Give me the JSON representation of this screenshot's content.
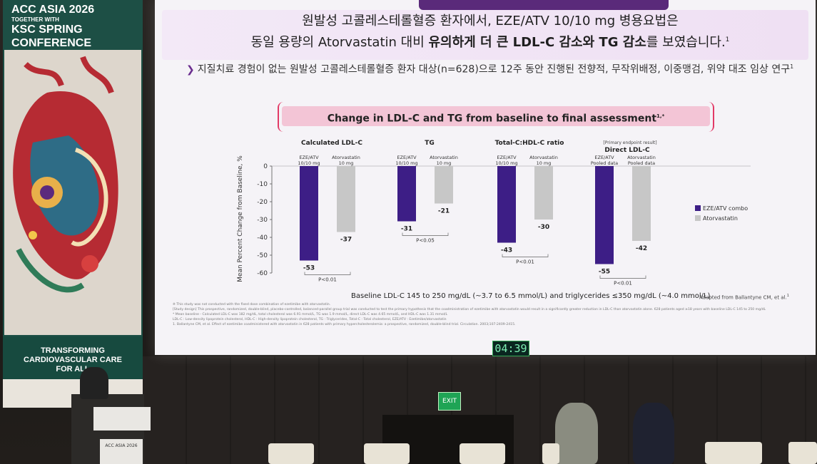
{
  "banner": {
    "line1": "ACC ASIA 2026",
    "line2": "TOGETHER WITH",
    "line3": "KSC SPRING",
    "line4": "CONFERENCE",
    "tagline1": "TRANSFORMING",
    "tagline2": "CARDIOVASCULAR CARE",
    "tagline3": "FOR ALL"
  },
  "slide": {
    "headline_line1": "원발성 고콜레스테롤혈증 환자에서, EZE/ATV 10/10 mg 병용요법은",
    "headline_line2_a": "동일 용량의 Atorvastatin 대비 ",
    "headline_line2_b": "유의하게 더 큰 LDL-C 감소와 TG 감소",
    "headline_line2_c": "를 보였습니다.",
    "headline_sup": "1",
    "bullet": "지질치료 경험이 없는 원발성 고콜레스테롤혈증 환자 대상(n=628)으로 12주 동안 진행된 전향적, 무작위배정, 이중맹검, 위약 대조 임상 연구",
    "bullet_sup": "1",
    "chart_banner": "Change in LDL-C and TG from baseline to final assessment",
    "chart_banner_sup": "1,*",
    "baseline_note": "Baseline LDL-C 145 to 250 mg/dL (~3.7 to 6.5 mmol/L) and triglycerides ≤350 mg/dL (~4.0 mmol/L).",
    "adapted": "Adapted from Ballantyne CM, et al.",
    "adapted_sup": "1",
    "footnote1": "※ This study was not conducted with the fixed dose combination of ezetimibe with atorvastatin.",
    "footnote2": "[Study design] This prospective, randomized, double-blind, placebo-controlled, balanced-parallel group trial was conducted to test the primary hypothesis that the coadministration of ezetimibe with atorvastatin would result in a significantly greater reduction in LDL-C than atorvastatin alone. 628 patients aged ≥18 years with baseline LDL-C 145 to 250 mg/dL",
    "footnote3": "* Mean baseline - Calculated LDL-C was 182 mg/dL, total cholesterol was 6.91 mmol/L, TG was 1.9 mmol/L, direct LDL-C was 4.65 mmol/L, and HDL-C was 1.31 mmol/L",
    "footnote4": "LDL-C : Low-density lipoprotein cholesterol, HDL-C : High-density lipoprotein cholesterol, TG : Triglycerides, Total-C : Total cholesterol, EZE/ATV : Ezetimibe/atorvastatin",
    "footnote5": "1. Ballantyne CM, et al. Effect of ezetimibe coadministered with atorvastatin in 628 patients with primary hypercholesterolemia: a prospective, randomized, double-blind trial. Circulation. 2003;107:2409-2415."
  },
  "timer": "04:39",
  "exit_label": "EXIT",
  "podium_label": "ACC ASIA 2026",
  "chart_data": {
    "type": "bar",
    "ylabel": "Mean Percent Change from Baseline, %",
    "ylim": [
      -60,
      0
    ],
    "yticks": [
      0,
      -10,
      -20,
      -30,
      -40,
      -50,
      -60
    ],
    "groups": [
      {
        "title": "Calculated LDL-C",
        "pre_title": "",
        "labels": [
          "EZE/ATV 10/10 mg",
          "Atorvastatin 10 mg"
        ],
        "values": [
          -53,
          -37
        ],
        "p": "P<0.01"
      },
      {
        "title": "TG",
        "pre_title": "",
        "labels": [
          "EZE/ATV 10/10 mg",
          "Atorvastatin 10 mg"
        ],
        "values": [
          -31,
          -21
        ],
        "p": "P<0.05"
      },
      {
        "title": "Total-C:HDL-C ratio",
        "pre_title": "",
        "labels": [
          "EZE/ATV 10/10 mg",
          "Atorvastatin 10 mg"
        ],
        "values": [
          -43,
          -30
        ],
        "p": "P<0.01"
      },
      {
        "title": "Direct LDL-C",
        "pre_title": "[Primary endpoint result]",
        "labels": [
          "EZE/ATV Pooled data",
          "Atorvastatin Pooled data"
        ],
        "values": [
          -55,
          -42
        ],
        "p": "P<0.01"
      }
    ],
    "legend": [
      {
        "name": "EZE/ATV combo",
        "color": "#3d1e86"
      },
      {
        "name": "Atorvastatin",
        "color": "#c7c7c7"
      }
    ],
    "legend_position": "right"
  }
}
